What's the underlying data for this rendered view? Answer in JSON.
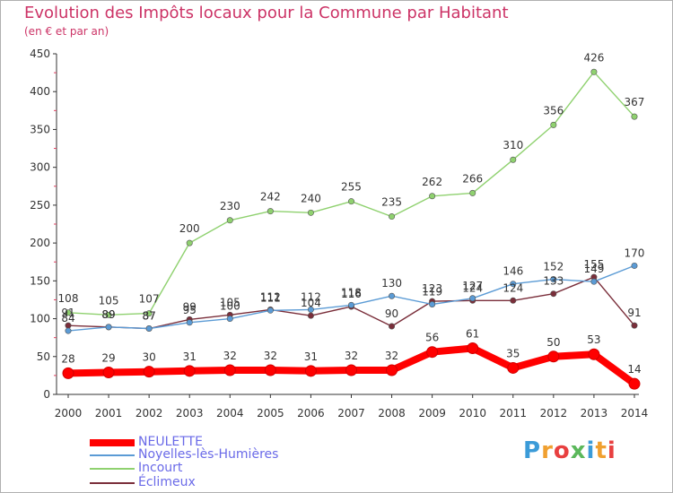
{
  "header": {
    "title": "Evolution des Impôts locaux pour la Commune par Habitant",
    "subtitle": "(en € et par an)"
  },
  "logo": {
    "text": "Proxiti",
    "colors": [
      "#3b9bd8",
      "#f0a030",
      "#e84040",
      "#5bb85b",
      "#3b9bd8",
      "#f0a030",
      "#e84040"
    ]
  },
  "chart_data": {
    "type": "line",
    "title": "Evolution des Impôts locaux pour la Commune par Habitant",
    "subtitle": "(en € et par an)",
    "ylim": [
      0,
      450
    ],
    "yticks": [
      0,
      50,
      100,
      150,
      200,
      250,
      300,
      350,
      400,
      450
    ],
    "grid": false,
    "legend_position": "bottom-left",
    "x": [
      "2000",
      "2001",
      "2002",
      "2003",
      "2004",
      "2005",
      "2006",
      "2007",
      "2008",
      "2009",
      "2010",
      "2011",
      "2012",
      "2013",
      "2014"
    ],
    "series": [
      {
        "name": "NEULETTE",
        "color": "#ff0000",
        "values": [
          28,
          29,
          30,
          31,
          32,
          32,
          31,
          32,
          32,
          56,
          61,
          35,
          50,
          53,
          14
        ]
      },
      {
        "name": "Noyelles-lès-Humières",
        "color": "#5b9bd5",
        "values": [
          84,
          89,
          87,
          95,
          100,
          111,
          112,
          118,
          130,
          119,
          127,
          146,
          152,
          149,
          170
        ]
      },
      {
        "name": "Incourt",
        "color": "#8fd16f",
        "values": [
          108,
          105,
          107,
          200,
          230,
          242,
          240,
          255,
          235,
          262,
          266,
          310,
          356,
          426,
          367
        ]
      },
      {
        "name": "Éclimeux",
        "color": "#7a2e3a",
        "values": [
          91,
          89,
          87,
          99,
          105,
          112,
          104,
          116,
          90,
          123,
          124,
          124,
          133,
          155,
          91
        ]
      }
    ],
    "data_labels": [
      [
        "28",
        "29",
        "30",
        "31",
        "32",
        "32",
        "31",
        "32",
        "32",
        "56",
        "61",
        "35",
        "50",
        "53",
        "14"
      ],
      [
        "84",
        "89",
        "87",
        "95",
        "100",
        "111",
        "112",
        "118",
        "130",
        "119",
        "127",
        "146",
        "152",
        "149",
        "170"
      ],
      [
        "108",
        "105",
        "107",
        "200",
        "230",
        "242",
        "240",
        "255",
        "235",
        "262",
        "266",
        "310",
        "356",
        "426",
        "367"
      ],
      [
        "91",
        "89",
        "87",
        "99",
        "105",
        "112",
        "104",
        "116",
        "90",
        "123",
        "124",
        "124",
        "133",
        "155",
        "91"
      ]
    ]
  }
}
